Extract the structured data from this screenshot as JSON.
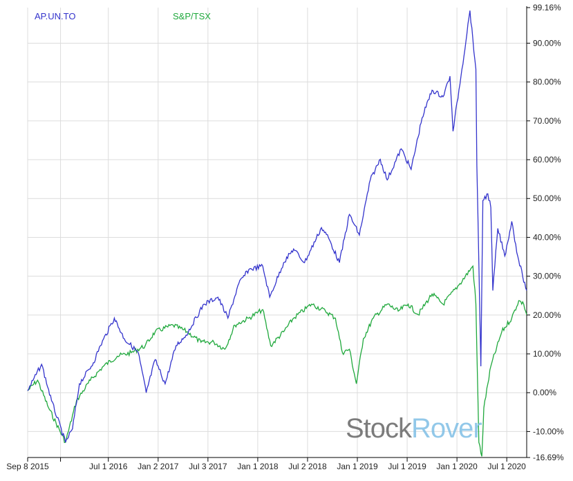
{
  "chart_data": {
    "type": "line",
    "title": "",
    "xlabel": "",
    "ylabel": "",
    "xlim": [
      2015.69,
      2020.7
    ],
    "ylim": [
      -16.69,
      99.16
    ],
    "grid": true,
    "legend_position": "top-left",
    "x_ticks": [
      {
        "x": 2015.69,
        "label": "Sep 8 2015"
      },
      {
        "x": 2016.02,
        "label": ""
      },
      {
        "x": 2016.5,
        "label": "Jul 1 2016"
      },
      {
        "x": 2017.0,
        "label": "Jan 2 2017"
      },
      {
        "x": 2017.5,
        "label": "Jul 3 2017"
      },
      {
        "x": 2018.0,
        "label": "Jan 1 2018"
      },
      {
        "x": 2018.5,
        "label": "Jul 2 2018"
      },
      {
        "x": 2019.0,
        "label": "Jan 1 2019"
      },
      {
        "x": 2019.5,
        "label": "Jul 1 2019"
      },
      {
        "x": 2020.0,
        "label": "Jan 1 2020"
      },
      {
        "x": 2020.5,
        "label": "Jul 1 2020"
      }
    ],
    "y_ticks": [
      {
        "y": 99.16,
        "label": "99.16%"
      },
      {
        "y": 90,
        "label": "90.00%"
      },
      {
        "y": 80,
        "label": "80.00%"
      },
      {
        "y": 70,
        "label": "70.00%"
      },
      {
        "y": 60,
        "label": "60.00%"
      },
      {
        "y": 50,
        "label": "50.00%"
      },
      {
        "y": 40,
        "label": "40.00%"
      },
      {
        "y": 30,
        "label": "30.00%"
      },
      {
        "y": 20,
        "label": "20.00%"
      },
      {
        "y": 10,
        "label": "10.00%"
      },
      {
        "y": 0,
        "label": "0.00%"
      },
      {
        "y": -10,
        "label": "-10.00%"
      },
      {
        "y": -16.69,
        "label": "-16.69%"
      }
    ],
    "series": [
      {
        "name": "AP.UN.TO",
        "color": "#3333cc",
        "x": [
          2015.69,
          2015.83,
          2015.93,
          2016.07,
          2016.14,
          2016.21,
          2016.35,
          2016.42,
          2016.56,
          2016.66,
          2016.8,
          2016.88,
          2016.97,
          2017.07,
          2017.18,
          2017.28,
          2017.46,
          2017.6,
          2017.7,
          2017.81,
          2017.91,
          2018.05,
          2018.12,
          2018.26,
          2018.36,
          2018.47,
          2018.64,
          2018.71,
          2018.82,
          2018.92,
          2019.02,
          2019.13,
          2019.23,
          2019.3,
          2019.44,
          2019.54,
          2019.65,
          2019.75,
          2019.86,
          2019.93,
          2019.96,
          2020.05,
          2020.13,
          2020.19,
          2020.2,
          2020.24,
          2020.26,
          2020.31,
          2020.34,
          2020.36,
          2020.41,
          2020.48,
          2020.55,
          2020.61,
          2020.66,
          2020.7
        ],
        "y": [
          0.5,
          7.3,
          -2.1,
          -12.8,
          -9.3,
          2.3,
          7.7,
          12.1,
          19.2,
          13.9,
          10.3,
          0,
          8.5,
          2.3,
          12.1,
          14.8,
          22.8,
          24.6,
          19.2,
          28.1,
          31.7,
          32.6,
          24.6,
          33.5,
          37.0,
          33.5,
          42.5,
          39.9,
          33.5,
          45.9,
          40.6,
          54.8,
          60.1,
          54.8,
          62.8,
          57.5,
          70.8,
          77.9,
          76.2,
          81.5,
          67.3,
          83.3,
          98.4,
          83.3,
          58.4,
          6.8,
          49.5,
          51.2,
          47.7,
          26.3,
          42.3,
          35.2,
          44.1,
          35.2,
          29.9,
          26.3
        ]
      },
      {
        "name": "S&P/TSX",
        "color": "#1fa83c",
        "x": [
          2015.69,
          2015.79,
          2015.9,
          2016.07,
          2016.18,
          2016.32,
          2016.45,
          2016.59,
          2016.73,
          2016.87,
          2016.97,
          2017.15,
          2017.29,
          2017.43,
          2017.56,
          2017.67,
          2017.77,
          2017.91,
          2018.05,
          2018.13,
          2018.26,
          2018.36,
          2018.54,
          2018.68,
          2018.78,
          2018.85,
          2018.92,
          2018.99,
          2019.06,
          2019.16,
          2019.3,
          2019.41,
          2019.51,
          2019.61,
          2019.75,
          2019.86,
          2020.03,
          2020.16,
          2020.19,
          2020.22,
          2020.25,
          2020.27,
          2020.34,
          2020.45,
          2020.55,
          2020.62,
          2020.67,
          2020.7
        ],
        "y": [
          0.5,
          3.2,
          -3.9,
          -12.8,
          -2.1,
          3.2,
          6.8,
          9.4,
          10.3,
          12.1,
          15.7,
          17.4,
          15.7,
          13.0,
          13.0,
          11.2,
          17.4,
          19.2,
          21.4,
          12.1,
          15.7,
          19.2,
          22.8,
          21.0,
          19.2,
          10.3,
          11.2,
          2.3,
          13.9,
          19.2,
          22.8,
          21.0,
          22.8,
          20.1,
          25.4,
          22.8,
          28.1,
          32.6,
          22.8,
          -12.8,
          -16.4,
          -3.9,
          6.8,
          15.7,
          19.2,
          23.7,
          22.8,
          20.1
        ]
      }
    ]
  },
  "watermark": {
    "part1": "Stock",
    "part2": "Rover"
  }
}
